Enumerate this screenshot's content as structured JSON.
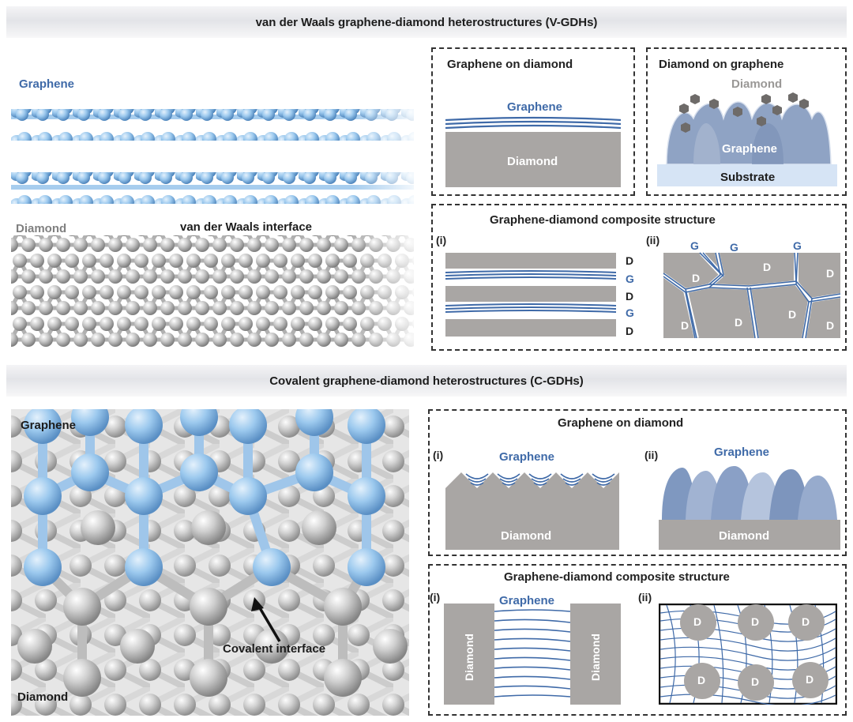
{
  "vdw": {
    "banner": "van der Waals graphene-diamond heterostructures (V-GDHs)",
    "model": {
      "graphene": "Graphene",
      "diamond": "Diamond",
      "interface": "van der Waals interface"
    },
    "god": {
      "title": "Graphene on diamond",
      "graphene": "Graphene",
      "diamond": "Diamond"
    },
    "dog": {
      "title": "Diamond on graphene",
      "diamond": "Diamond",
      "graphene": "Graphene",
      "substrate": "Substrate"
    },
    "comp": {
      "title": "Graphene-diamond composite structure",
      "i": "(i)",
      "ii": "(ii)",
      "layers": [
        "D",
        "G",
        "D",
        "G",
        "D"
      ],
      "g_tag": "G",
      "d_tag": "D"
    }
  },
  "cov": {
    "banner": "Covalent graphene-diamond heterostructures (C-GDHs)",
    "model": {
      "graphene": "Graphene",
      "diamond": "Diamond",
      "interface": "Covalent interface"
    },
    "god": {
      "title": "Graphene on diamond",
      "i": "(i)",
      "ii": "(ii)",
      "graphene": "Graphene",
      "diamond": "Diamond"
    },
    "comp": {
      "title": "Graphene-diamond composite structure",
      "i": "(i)",
      "ii": "(ii)",
      "graphene": "Graphene",
      "diamond": "Diamond",
      "d_tag": "D"
    }
  },
  "colors": {
    "graphene": "#3f6aa8",
    "diamond": "#a9a6a4",
    "atom_blue": "#8fbde6",
    "atom_grey": "#bdbdbd"
  }
}
